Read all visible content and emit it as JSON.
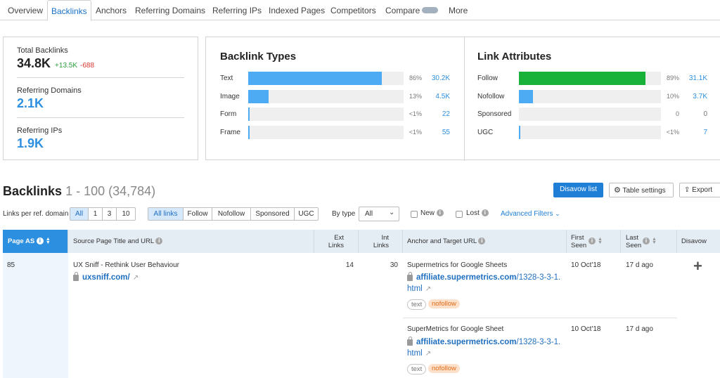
{
  "tabs": [
    {
      "label": "Overview",
      "active": false
    },
    {
      "label": "Backlinks",
      "active": true
    },
    {
      "label": "Anchors",
      "active": false
    },
    {
      "label": "Referring Domains",
      "active": false
    },
    {
      "label": "Referring IPs",
      "active": false
    },
    {
      "label": "Indexed Pages",
      "active": false
    },
    {
      "label": "Competitors",
      "active": false
    },
    {
      "label": "Compare",
      "active": false
    },
    {
      "label": "More",
      "active": false
    }
  ],
  "summary": {
    "total_backlinks": {
      "label": "Total Backlinks",
      "value": "34.8K",
      "up": "+13.5K",
      "down": "-688"
    },
    "referring_domains": {
      "label": "Referring Domains",
      "value": "2.1K"
    },
    "referring_ips": {
      "label": "Referring IPs",
      "value": "1.9K"
    }
  },
  "backlink_types": {
    "title": "Backlink Types",
    "rows": [
      {
        "label": "Text",
        "pct": "86%",
        "count": "30.2K",
        "fill": 0.86
      },
      {
        "label": "Image",
        "pct": "13%",
        "count": "4.5K",
        "fill": 0.13
      },
      {
        "label": "Form",
        "pct": "<1%",
        "count": "22",
        "fill": 0.006
      },
      {
        "label": "Frame",
        "pct": "<1%",
        "count": "55",
        "fill": 0.006
      }
    ]
  },
  "link_attributes": {
    "title": "Link Attributes",
    "rows": [
      {
        "label": "Follow",
        "pct": "89%",
        "count": "31.1K",
        "fill": 0.89
      },
      {
        "label": "Nofollow",
        "pct": "10%",
        "count": "3.7K",
        "fill": 0.1
      },
      {
        "label": "Sponsored",
        "pct": "0",
        "count": "0",
        "fill": 0
      },
      {
        "label": "UGC",
        "pct": "<1%",
        "count": "7",
        "fill": 0.006
      }
    ]
  },
  "colors": {
    "accent": "#2d8fe0",
    "bar_blue": "#4cabf2",
    "bar_green": "#18b13a",
    "track": "#efefef"
  },
  "backlinks_header": {
    "title": "Backlinks",
    "range": "1 - 100 (34,784)",
    "disavow_btn": "Disavow list",
    "table_settings_btn": "Table settings",
    "export_btn": "Export"
  },
  "filters": {
    "links_per_domain_label": "Links per ref. domain",
    "links_per_domain_options": [
      "All",
      "1",
      "3",
      "10"
    ],
    "link_type_options": [
      "All links",
      "Follow",
      "Nofollow",
      "Sponsored",
      "UGC"
    ],
    "by_type_label": "By type",
    "by_type_value": "All",
    "new_label": "New",
    "lost_label": "Lost",
    "advanced_label": "Advanced Filters"
  },
  "table": {
    "headers": {
      "page_as": "Page AS",
      "source": "Source Page Title and URL",
      "ext_links": [
        "Ext",
        "Links"
      ],
      "int_links": [
        "Int",
        "Links"
      ],
      "anchor": "Anchor and Target URL",
      "first_seen": [
        "First",
        "Seen"
      ],
      "last_seen": [
        "Last",
        "Seen"
      ],
      "disavow": "Disavow"
    },
    "row": {
      "page_as": "85",
      "source_title": "UX Sniff - Rethink User Behaviour",
      "source_url": "uxsniff.com/",
      "ext_links": "14",
      "int_links": "30",
      "disavow_icon": "+",
      "anchors": [
        {
          "anchor": "Supermetrics for Google Sheets",
          "url_bold": "affiliate.supermetrics.com",
          "url_rest": "/1328-3-3-1.",
          "url_line2": "html",
          "tag1": "text",
          "tag2": "nofollow",
          "first_seen": "10 Oct'18",
          "last_seen": "17 d ago"
        },
        {
          "anchor": "SuperMetrics for Google Sheet",
          "url_bold": "affiliate.supermetrics.com",
          "url_rest": "/1328-3-3-1.",
          "url_line2": "html",
          "tag1": "text",
          "tag2": "nofollow",
          "first_seen": "10 Oct'18",
          "last_seen": "17 d ago"
        }
      ]
    }
  }
}
